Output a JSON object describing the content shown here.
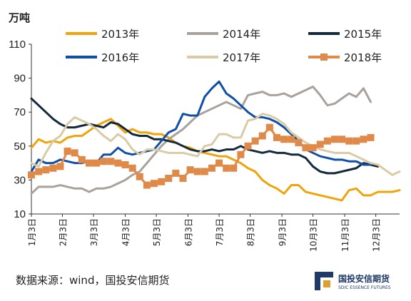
{
  "unit_label": "万吨",
  "source": "数据来源：wind，国投安信期货",
  "logo": {
    "name": "国投安信期货",
    "sub": "SDIC ESSENCE FUTURES"
  },
  "chart_data": {
    "type": "line",
    "title": "",
    "ylabel": "万吨",
    "ylim": [
      10,
      110
    ],
    "yticks": [
      10,
      30,
      50,
      70,
      90,
      110
    ],
    "xlim": [
      0,
      51
    ],
    "xtick_pos": [
      0,
      4.3,
      8.6,
      13,
      17.3,
      21.7,
      26,
      30.3,
      34.7,
      39,
      43.4,
      47.7
    ],
    "xtick_labels": [
      "1月3日",
      "2月3日",
      "3月3日",
      "4月3日",
      "5月3日",
      "6月3日",
      "7月3日",
      "8月3日",
      "9月3日",
      "10月3日",
      "11月3日",
      "12月3日"
    ],
    "grid": false,
    "legend_position": "top",
    "series": [
      {
        "name": "2013年",
        "color": "#f0a30a",
        "marker": "none",
        "values": [
          49,
          54,
          52,
          53,
          52,
          55,
          56,
          56,
          59,
          62,
          64,
          66,
          62,
          58,
          60,
          58,
          58,
          57,
          57,
          55,
          52,
          50,
          49,
          47,
          46,
          45,
          44,
          44,
          42,
          40,
          37,
          35,
          30,
          27,
          25,
          22,
          27,
          27,
          23,
          22,
          21,
          20,
          19,
          18,
          24,
          25,
          21,
          21,
          23,
          23,
          23,
          24
        ]
      },
      {
        "name": "2014年",
        "color": "#a8a19c",
        "marker": "none",
        "values": [
          22,
          26,
          26,
          26,
          27,
          26,
          25,
          25,
          23,
          25,
          25,
          26,
          28,
          30,
          33,
          35,
          40,
          45,
          50,
          54,
          57,
          60,
          64,
          68,
          70,
          72,
          74,
          76,
          74,
          72,
          80,
          81,
          82,
          80,
          80,
          81,
          79,
          81,
          83,
          85,
          80,
          74,
          75,
          78,
          81,
          79,
          84,
          76
        ]
      },
      {
        "name": "2015年",
        "color": "#13293d",
        "marker": "none",
        "values": [
          78,
          74,
          70,
          66,
          63,
          61,
          61,
          62,
          63,
          62,
          61,
          64,
          63,
          60,
          57,
          56,
          56,
          54,
          54,
          53,
          52,
          50,
          48,
          47,
          47,
          48,
          47,
          48,
          48,
          50,
          48,
          47,
          46,
          47,
          46,
          46,
          45,
          45,
          43,
          38,
          35,
          34,
          34,
          35,
          36,
          37,
          40,
          39,
          38
        ]
      },
      {
        "name": "2016年",
        "color": "#0f4fa8",
        "marker": "none",
        "values": [
          35,
          42,
          40,
          40,
          42,
          41,
          40,
          40,
          41,
          40,
          45,
          45,
          49,
          46,
          45,
          46,
          47,
          48,
          53,
          58,
          60,
          69,
          68,
          68,
          79,
          84,
          88,
          81,
          78,
          74,
          70,
          67,
          67,
          66,
          64,
          61,
          57,
          53,
          48,
          46,
          44,
          43,
          42,
          42,
          41,
          41,
          39,
          39
        ]
      },
      {
        "name": "2017年",
        "color": "#d8cba6",
        "marker": "none",
        "values": [
          40,
          38,
          46,
          53,
          56,
          63,
          67,
          65,
          63,
          60,
          56,
          53,
          57,
          54,
          48,
          45,
          48,
          48,
          47,
          46,
          46,
          46,
          45,
          44,
          50,
          51,
          57,
          57,
          55,
          55,
          65,
          66,
          69,
          68,
          66,
          63,
          58,
          55,
          52,
          50,
          48,
          47,
          46,
          46,
          46,
          44,
          42,
          40,
          39,
          36,
          33,
          35
        ]
      },
      {
        "name": "2018年",
        "color": "#e08a4a",
        "marker": "square",
        "values": [
          33,
          35,
          36,
          37,
          38,
          47,
          46,
          42,
          40,
          40,
          41,
          41,
          40,
          39,
          37,
          32,
          27,
          28,
          29,
          31,
          34,
          31,
          36,
          35,
          35,
          37,
          40,
          37,
          37,
          45,
          50,
          53,
          56,
          61,
          55,
          54,
          54,
          52,
          49,
          49,
          51,
          53,
          54,
          54,
          53,
          53,
          54,
          55
        ]
      }
    ]
  }
}
